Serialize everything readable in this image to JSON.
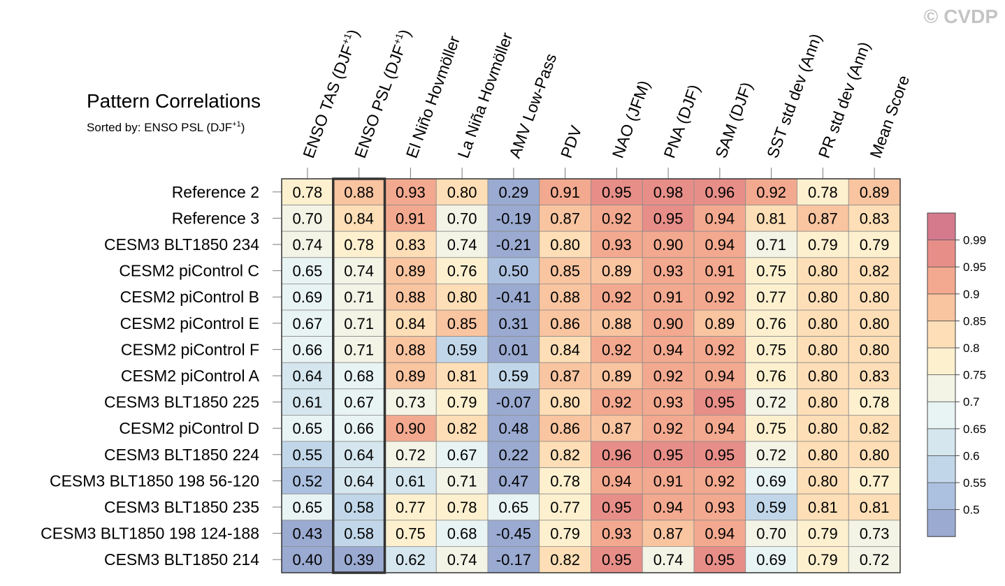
{
  "watermark": "© CVDP",
  "chart_data": {
    "type": "heatmap",
    "title": "Pattern Correlations",
    "subtitle": {
      "prefix": "Sorted by: ENSO PSL (DJF",
      "sup": "+1",
      "suffix": ")"
    },
    "highlight_column": 1,
    "columns": [
      {
        "label": "ENSO TAS (DJF",
        "sup": "+1",
        "suffix": ")"
      },
      {
        "label": "ENSO PSL (DJF",
        "sup": "+1",
        "suffix": ")"
      },
      {
        "label": "El Niño Hovmöller"
      },
      {
        "label": "La Niña Hovmöller"
      },
      {
        "label": "AMV Low-Pass"
      },
      {
        "label": "PDV"
      },
      {
        "label": "NAO (JFM)"
      },
      {
        "label": "PNA (DJF)"
      },
      {
        "label": "SAM (DJF)"
      },
      {
        "label": "SST std dev (Ann)"
      },
      {
        "label": "PR std dev (Ann)"
      },
      {
        "label": "Mean Score"
      }
    ],
    "rows": [
      "Reference 2",
      "Reference 3",
      "CESM3 BLT1850 234",
      "CESM2 piControl C",
      "CESM2 piControl B",
      "CESM2 piControl E",
      "CESM2 piControl F",
      "CESM2 piControl A",
      "CESM3 BLT1850 225",
      "CESM2 piControl D",
      "CESM3 BLT1850 224",
      "CESM3 BLT1850 198 56-120",
      "CESM3 BLT1850 235",
      "CESM3 BLT1850 198 124-188",
      "CESM3 BLT1850 214"
    ],
    "values": [
      [
        "0.78",
        "0.88",
        "0.93",
        "0.80",
        "0.29",
        "0.91",
        "0.95",
        "0.98",
        "0.96",
        "0.92",
        "0.78",
        "0.89"
      ],
      [
        "0.70",
        "0.84",
        "0.91",
        "0.70",
        "-0.19",
        "0.87",
        "0.92",
        "0.95",
        "0.94",
        "0.81",
        "0.87",
        "0.83"
      ],
      [
        "0.74",
        "0.78",
        "0.83",
        "0.74",
        "-0.21",
        "0.80",
        "0.93",
        "0.90",
        "0.94",
        "0.71",
        "0.79",
        "0.79"
      ],
      [
        "0.65",
        "0.74",
        "0.89",
        "0.76",
        "0.50",
        "0.85",
        "0.89",
        "0.93",
        "0.91",
        "0.75",
        "0.80",
        "0.82"
      ],
      [
        "0.69",
        "0.71",
        "0.88",
        "0.80",
        "-0.41",
        "0.88",
        "0.92",
        "0.91",
        "0.92",
        "0.77",
        "0.80",
        "0.80"
      ],
      [
        "0.67",
        "0.71",
        "0.84",
        "0.85",
        "0.31",
        "0.86",
        "0.88",
        "0.90",
        "0.89",
        "0.76",
        "0.80",
        "0.80"
      ],
      [
        "0.66",
        "0.71",
        "0.88",
        "0.59",
        "0.01",
        "0.84",
        "0.92",
        "0.94",
        "0.92",
        "0.75",
        "0.80",
        "0.80"
      ],
      [
        "0.64",
        "0.68",
        "0.89",
        "0.81",
        "0.59",
        "0.87",
        "0.89",
        "0.92",
        "0.94",
        "0.76",
        "0.80",
        "0.83"
      ],
      [
        "0.61",
        "0.67",
        "0.73",
        "0.79",
        "-0.07",
        "0.80",
        "0.92",
        "0.93",
        "0.95",
        "0.72",
        "0.80",
        "0.78"
      ],
      [
        "0.65",
        "0.66",
        "0.90",
        "0.82",
        "0.48",
        "0.86",
        "0.87",
        "0.92",
        "0.94",
        "0.75",
        "0.80",
        "0.82"
      ],
      [
        "0.55",
        "0.64",
        "0.72",
        "0.67",
        "0.22",
        "0.82",
        "0.96",
        "0.95",
        "0.95",
        "0.72",
        "0.80",
        "0.80"
      ],
      [
        "0.52",
        "0.64",
        "0.61",
        "0.71",
        "0.47",
        "0.78",
        "0.94",
        "0.91",
        "0.92",
        "0.69",
        "0.80",
        "0.77"
      ],
      [
        "0.65",
        "0.58",
        "0.77",
        "0.78",
        "0.65",
        "0.77",
        "0.95",
        "0.94",
        "0.93",
        "0.59",
        "0.81",
        "0.81"
      ],
      [
        "0.43",
        "0.58",
        "0.75",
        "0.68",
        "-0.45",
        "0.79",
        "0.93",
        "0.87",
        "0.94",
        "0.70",
        "0.79",
        "0.73"
      ],
      [
        "0.40",
        "0.39",
        "0.62",
        "0.74",
        "-0.17",
        "0.82",
        "0.95",
        "0.74",
        "0.95",
        "0.69",
        "0.79",
        "0.72"
      ]
    ],
    "colorbar": {
      "thresholds": [
        0.5,
        0.55,
        0.6,
        0.65,
        0.7,
        0.75,
        0.8,
        0.85,
        0.9,
        0.95,
        0.99
      ],
      "labels": [
        "0.5",
        "0.55",
        "0.6",
        "0.65",
        "0.7",
        "0.75",
        "0.8",
        "0.85",
        "0.9",
        "0.95",
        "0.99"
      ],
      "colors": [
        "#9aaad1",
        "#acc1e0",
        "#c1d7e9",
        "#d5e6ee",
        "#e8f3f3",
        "#f3f3e6",
        "#fdf0cf",
        "#fddeb6",
        "#f9c4a0",
        "#f3a98f",
        "#e78e88",
        "#d57a8d"
      ]
    }
  }
}
